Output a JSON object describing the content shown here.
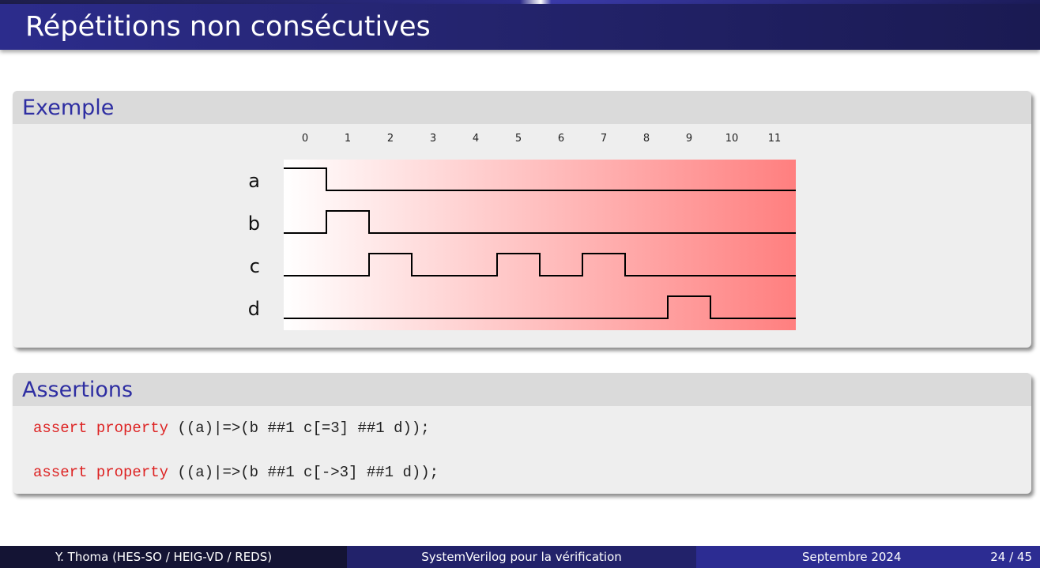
{
  "slide": {
    "title": "Répétitions non consécutives"
  },
  "example_block": {
    "title": "Exemple"
  },
  "assertions_block": {
    "title": "Assertions",
    "lines": [
      {
        "keyword": "assert property",
        "rest": " ((a)|=>(b ##1 c[=3] ##1 d));"
      },
      {
        "keyword": "assert property",
        "rest": " ((a)|=>(b ##1 c[->3] ##1 d));"
      }
    ]
  },
  "timing_diagram": {
    "cycles": [
      "0",
      "1",
      "2",
      "3",
      "4",
      "5",
      "6",
      "7",
      "8",
      "9",
      "10",
      "11"
    ],
    "signals": [
      {
        "name": "a",
        "levels": [
          1,
          0,
          0,
          0,
          0,
          0,
          0,
          0,
          0,
          0,
          0,
          0
        ]
      },
      {
        "name": "b",
        "levels": [
          0,
          1,
          0,
          0,
          0,
          0,
          0,
          0,
          0,
          0,
          0,
          0
        ]
      },
      {
        "name": "c",
        "levels": [
          0,
          0,
          1,
          0,
          0,
          1,
          0,
          1,
          0,
          0,
          0,
          0
        ]
      },
      {
        "name": "d",
        "levels": [
          0,
          0,
          0,
          0,
          0,
          0,
          0,
          0,
          0,
          1,
          0,
          0
        ]
      }
    ],
    "colors": {
      "gradient_start": "#ffffff",
      "gradient_end": "#ff7f7f",
      "wave": "#000000"
    }
  },
  "footer": {
    "author": "Y. Thoma  (HES-SO / HEIG-VD / REDS)",
    "course": "SystemVerilog pour la vérification",
    "date": "Septembre 2024",
    "page": "24 / 45"
  },
  "theme": {
    "title_bg": "#2c2c8c",
    "block_title_color": "#2e2ea2",
    "keyword_color": "#dd2222"
  }
}
